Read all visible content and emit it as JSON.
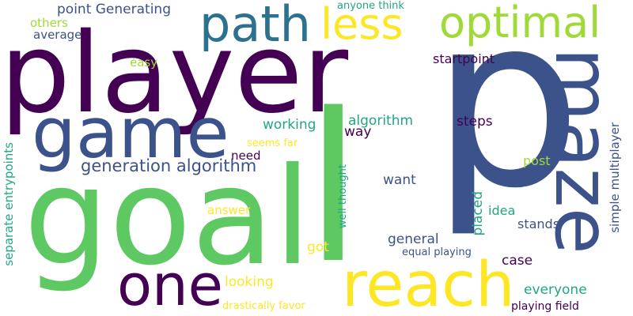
{
  "words": {
    "p": "p",
    "player": "player",
    "goal": "goal",
    "maze": "maze",
    "game": "game",
    "reach": "reach",
    "one": "one",
    "path": "path",
    "optimal": "optimal",
    "less": "less",
    "l": "l",
    "generation_algorithm": "generation algorithm",
    "point_generating": "point Generating",
    "others": "others",
    "average": "average",
    "anyone_think": "anyone think",
    "easy": "easy",
    "startpoint": "startpoint",
    "working": "working",
    "algorithm": "algorithm",
    "steps": "steps",
    "way": "way",
    "seems_far": "seems far",
    "need": "need",
    "separate_entrypoints": "separate entrypoints",
    "well_thought": "well thought",
    "post": "post",
    "simple_multiplayer": "simple multiplayer",
    "want": "want",
    "answer": "answer",
    "idea": "idea",
    "placed": "placed",
    "stands": "stands",
    "general": "general",
    "got": "got",
    "equal_playing": "equal playing",
    "case": "case",
    "looking": "looking",
    "everyone": "everyone",
    "drastically_favor": "drastically favor",
    "playing_field": "playing field"
  },
  "colors": {
    "dark_purple": "#440154",
    "indigo": "#3b528b",
    "teal": "#2c728e",
    "green": "#5ec962",
    "lime": "#a0da39",
    "yellow": "#fde725",
    "sea_green": "#21a685",
    "light_green": "#7ad151"
  }
}
